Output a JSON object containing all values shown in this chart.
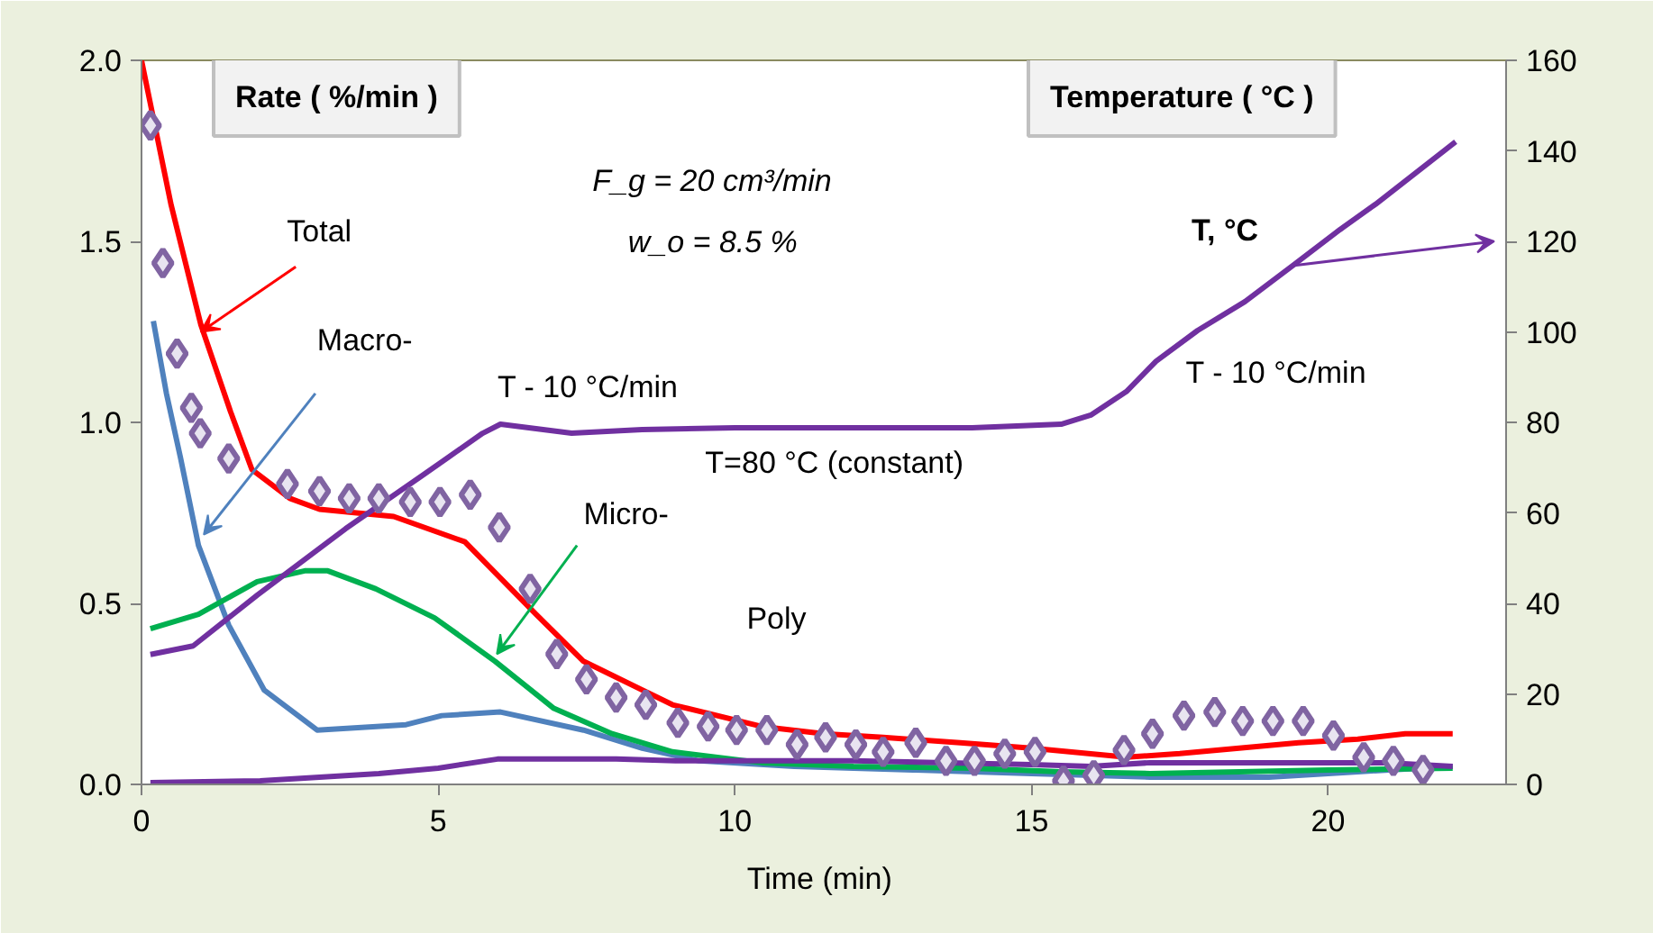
{
  "chart_data": {
    "type": "line",
    "xlabel": "Time  (min)",
    "ylabel": "Rate ( %/min )",
    "y2label": "Temperature ( °C )",
    "xlim": [
      0,
      23
    ],
    "xticks": [
      0,
      5,
      10,
      15,
      20
    ],
    "ylim": [
      0,
      2.0
    ],
    "yticks": [
      {
        "value": 0,
        "label": "0.0"
      },
      {
        "value": 0.5,
        "label": "0.5"
      },
      {
        "value": 1.0,
        "label": "1.0"
      },
      {
        "value": 1.5,
        "label": "1.5"
      },
      {
        "value": 2.0,
        "label": "2.0"
      }
    ],
    "y2lim": [
      0,
      160
    ],
    "y2ticks": [
      0,
      20,
      40,
      60,
      80,
      100,
      120,
      140,
      160
    ],
    "grid": false,
    "line_style": "solid",
    "annotations": [
      "F_g = 20 cm³/min",
      "w_o = 8.5 %",
      "T - 10 °C/min",
      "T=80 °C (constant)",
      "T - 10 °C/min",
      {
        "text": "Total",
        "x": 1.0,
        "y": 1.25
      },
      {
        "text": "Macro-",
        "x": 1.05,
        "y": 0.69
      },
      {
        "text": "Micro-",
        "x": 5.99,
        "y": 0.36
      },
      "Poly",
      "T, °C"
    ],
    "series": [
      {
        "color": "#ff0000",
        "x": [
          0,
          0.5,
          1,
          1.5,
          1.86,
          2.5,
          3,
          4.25,
          5.45,
          6.65,
          7.45,
          8.95,
          10.45,
          11.5,
          12.5,
          13.8,
          15,
          16.6,
          17.5,
          18.5,
          19.5,
          20.5,
          21.3,
          22.1
        ],
        "values": [
          2.0,
          1.6,
          1.27,
          1.03,
          0.87,
          0.79,
          0.76,
          0.74,
          0.67,
          0.47,
          0.34,
          0.22,
          0.16,
          0.14,
          0.13,
          0.115,
          0.1,
          0.075,
          0.085,
          0.1,
          0.115,
          0.125,
          0.14,
          0.14
        ]
      },
      {
        "color": "#4f81bd",
        "x": [
          0.2,
          0.42,
          0.66,
          0.96,
          1.47,
          2.07,
          2.96,
          4.46,
          5.06,
          6.05,
          7.45,
          8.44,
          9.4,
          11,
          13,
          15,
          17,
          19,
          20.5,
          22.1
        ],
        "values": [
          1.28,
          1.08,
          0.9,
          0.66,
          0.44,
          0.26,
          0.15,
          0.165,
          0.19,
          0.2,
          0.15,
          0.1,
          0.065,
          0.05,
          0.04,
          0.03,
          0.02,
          0.02,
          0.035,
          0.05
        ]
      },
      {
        "color": "#00b050",
        "x": [
          0.15,
          0.96,
          1.95,
          2.75,
          3.14,
          3.95,
          4.94,
          5.96,
          6.95,
          7.93,
          8.95,
          10.45,
          12,
          14,
          15.5,
          17,
          18.5,
          20,
          22.1
        ],
        "values": [
          0.43,
          0.47,
          0.56,
          0.59,
          0.59,
          0.54,
          0.46,
          0.34,
          0.21,
          0.14,
          0.09,
          0.06,
          0.05,
          0.045,
          0.035,
          0.03,
          0.035,
          0.04,
          0.045
        ]
      },
      {
        "color": "#7030a0",
        "x": [
          0.15,
          2,
          3,
          4,
          5,
          6,
          8,
          9,
          12,
          15,
          16,
          17,
          19,
          21,
          22.1
        ],
        "values": [
          0.005,
          0.01,
          0.02,
          0.03,
          0.045,
          0.07,
          0.07,
          0.065,
          0.065,
          0.055,
          0.05,
          0.06,
          0.06,
          0.06,
          0.05
        ]
      },
      {
        "color": "#7030a0",
        "axis": "y2",
        "x": [
          0.15,
          0.87,
          1.95,
          3.44,
          4.76,
          5.75,
          6.05,
          7.25,
          8.44,
          10,
          12,
          14,
          15.5,
          16,
          16.6,
          17.1,
          17.8,
          18.6,
          19.4,
          20.2,
          20.8,
          22.15
        ],
        "values": [
          28.7,
          30.6,
          41.8,
          56.5,
          68.5,
          77.6,
          79.6,
          77.6,
          78.4,
          78.8,
          78.8,
          78.8,
          79.6,
          81.6,
          86.8,
          93.5,
          100.3,
          106.7,
          114.6,
          122.6,
          128.2,
          142
        ]
      },
      {
        "type": "scatter",
        "marker": "diamond",
        "color": "#8064a2",
        "x": [
          0.15,
          0.36,
          0.6,
          0.84,
          0.99,
          1.47,
          2.46,
          3.0,
          3.5,
          4.0,
          4.53,
          5.03,
          5.54,
          6.03,
          6.55,
          7.0,
          7.5,
          8.0,
          8.5,
          9.04,
          9.55,
          10.03,
          10.54,
          11.05,
          11.53,
          12.04,
          12.5,
          13.05,
          13.56,
          14.04,
          14.55,
          15.06,
          15.54,
          16.05,
          16.56,
          17.04,
          17.57,
          18.09,
          18.56,
          19.07,
          19.58,
          20.09,
          20.6,
          21.1,
          21.6
        ],
        "values": [
          1.82,
          1.44,
          1.19,
          1.04,
          0.97,
          0.9,
          0.83,
          0.81,
          0.79,
          0.79,
          0.78,
          0.78,
          0.8,
          0.71,
          0.54,
          0.36,
          0.29,
          0.24,
          0.22,
          0.17,
          0.16,
          0.15,
          0.15,
          0.11,
          0.13,
          0.11,
          0.09,
          0.115,
          0.065,
          0.065,
          0.085,
          0.09,
          0.01,
          0.025,
          0.095,
          0.14,
          0.19,
          0.2,
          0.175,
          0.175,
          0.175,
          0.135,
          0.075,
          0.065,
          0.04
        ]
      }
    ]
  }
}
